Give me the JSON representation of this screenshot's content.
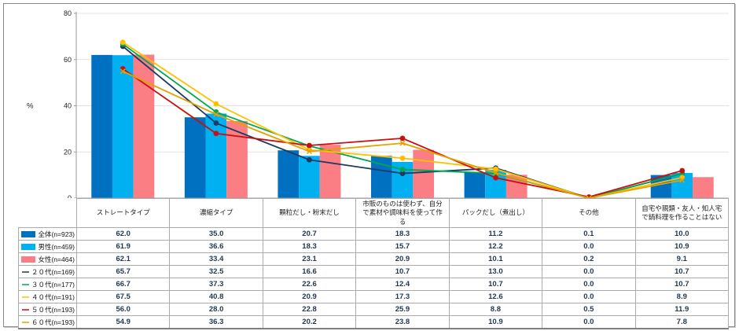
{
  "chart_data": {
    "type": "bar+line",
    "title": "",
    "xlabel": "",
    "ylabel": "%",
    "ylim": [
      0,
      80
    ],
    "yticks": [
      0,
      20,
      40,
      60,
      80
    ],
    "grid": true,
    "decimals": 1,
    "legend_position": "table-left-column",
    "categories": [
      "ストレートタイプ",
      "濃縮タイプ",
      "顆粒だし・粉末だし",
      "市販のものは使わず、自分で素材や調味料を使って作る",
      "パックだし（煮出し）",
      "その他",
      "自宅や親類・友人・知人宅で鍋料理を作ることはない"
    ],
    "bar_series": [
      {
        "name": "全体(n=923)",
        "color": "#0070C0",
        "values": [
          62.0,
          35.0,
          20.7,
          18.3,
          11.2,
          0.1,
          10.0
        ]
      },
      {
        "name": "男性(n=459)",
        "color": "#00B0F0",
        "values": [
          61.9,
          36.6,
          18.3,
          15.7,
          12.2,
          0.0,
          10.9
        ]
      },
      {
        "name": "女性(n=464)",
        "color": "#FA7E84",
        "values": [
          62.1,
          33.4,
          23.1,
          20.9,
          10.1,
          0.2,
          9.1
        ]
      }
    ],
    "line_series": [
      {
        "name": "２０代(n=169)",
        "color": "#1F3864",
        "marker": "circle",
        "values": [
          65.7,
          32.5,
          16.6,
          10.7,
          13.0,
          0.0,
          10.7
        ]
      },
      {
        "name": "３０代(n=177)",
        "color": "#00A650",
        "marker": "circle",
        "values": [
          66.7,
          37.3,
          22.6,
          12.4,
          10.7,
          0.0,
          10.7
        ]
      },
      {
        "name": "４０代(n=191)",
        "color": "#FFC000",
        "marker": "circle",
        "values": [
          67.5,
          40.8,
          20.9,
          17.3,
          12.6,
          0.0,
          8.9
        ]
      },
      {
        "name": "５０代(n=193)",
        "color": "#C81010",
        "marker": "circle",
        "values": [
          56.0,
          28.0,
          22.8,
          25.9,
          8.8,
          0.5,
          11.9
        ]
      },
      {
        "name": "６０代(n=193)",
        "color": "#E2A200",
        "marker": "x",
        "values": [
          54.9,
          36.3,
          20.2,
          23.8,
          10.9,
          0.0,
          7.8
        ]
      }
    ]
  }
}
